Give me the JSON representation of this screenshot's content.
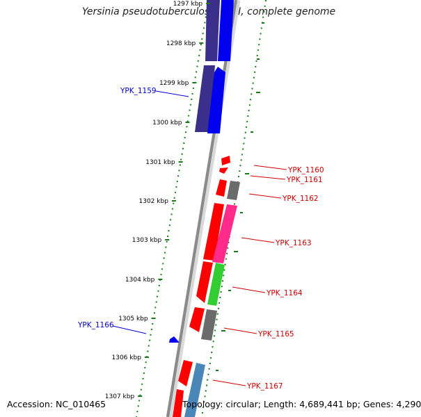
{
  "title": "Yersinia pseudotuberculosis YPIII, complete genome",
  "footer": {
    "accession": "Accession: NC_010465",
    "topology": "Topology: circular; Length: 4,689,441 bp; Genes: 4,290"
  },
  "ticks": [
    "1297 kbp",
    "1298 kbp",
    "1299 kbp",
    "1300 kbp",
    "1301 kbp",
    "1302 kbp",
    "1303 kbp",
    "1304 kbp",
    "1305 kbp",
    "1306 kbp",
    "1307 kbp"
  ],
  "gene_labels": [
    {
      "name": "YPK_1159",
      "color": "#0000cc"
    },
    {
      "name": "YPK_1160",
      "color": "#cc0000"
    },
    {
      "name": "YPK_1161",
      "color": "#cc0000"
    },
    {
      "name": "YPK_1162",
      "color": "#cc0000"
    },
    {
      "name": "YPK_1163",
      "color": "#cc0000"
    },
    {
      "name": "YPK_1164",
      "color": "#cc0000"
    },
    {
      "name": "YPK_1165",
      "color": "#cc0000"
    },
    {
      "name": "YPK_1166",
      "color": "#0000cc"
    },
    {
      "name": "YPK_1167",
      "color": "#cc0000"
    }
  ],
  "colors": {
    "forward_cds": "#ff0000",
    "reverse_cds": "#0000ee",
    "rna_purple": "#3a2f8a",
    "gray_feature": "#6b6b6b",
    "magenta_feature": "#ff2a8a",
    "green_feature": "#33cc33",
    "steel_feature": "#4a86b8",
    "backbone": "#8a8a8a",
    "tick": "#1a7a1a"
  }
}
